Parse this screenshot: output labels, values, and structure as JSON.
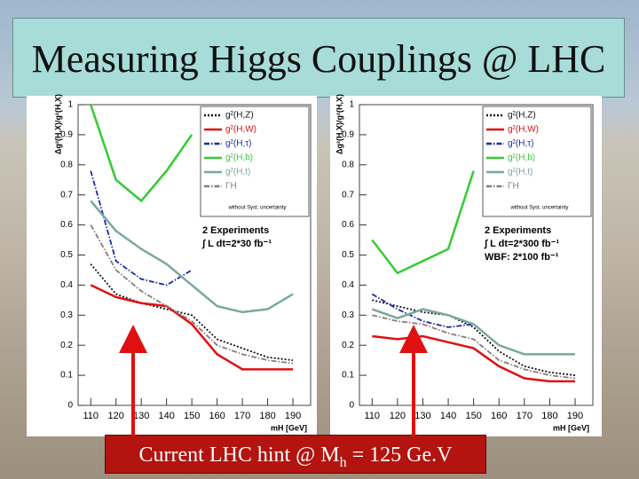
{
  "title": "Measuring Higgs Couplings @ LHC",
  "annotation": {
    "before": "Current LHC hint @ M",
    "sub": "h",
    "after": " = 125 Ge.V"
  },
  "chart_data": [
    {
      "type": "line",
      "ylabel": "Δg²(H,X)/g²(H,X)",
      "xlabel": "mH [GeV]",
      "x": [
        110,
        120,
        130,
        140,
        150,
        160,
        170,
        180,
        190
      ],
      "xlim": [
        105,
        197
      ],
      "ylim": [
        0,
        1
      ],
      "xticks": [
        110,
        120,
        130,
        140,
        150,
        160,
        170,
        180,
        190
      ],
      "yticks": [
        0,
        0.1,
        0.2,
        0.3,
        0.4,
        0.5,
        0.6,
        0.7,
        0.8,
        0.9,
        1
      ],
      "legend_note": "without Syst. uncertainty",
      "notes": [
        "2 Experiments",
        "∫ L dt=2*30 fb⁻¹"
      ],
      "series": [
        {
          "name": "g²(H,Z)",
          "color": "#111111",
          "style": "dotted",
          "values": [
            0.47,
            0.37,
            0.34,
            0.32,
            0.3,
            0.22,
            0.19,
            0.16,
            0.15
          ]
        },
        {
          "name": "g²(H,W)",
          "color": "#e01010",
          "style": "solid",
          "values": [
            0.4,
            0.36,
            0.34,
            0.33,
            0.27,
            0.17,
            0.12,
            0.12,
            0.12
          ]
        },
        {
          "name": "g²(H,τ)",
          "color": "#1a2aa8",
          "style": "dashdot",
          "values": [
            0.78,
            0.48,
            0.42,
            0.4,
            0.45,
            null,
            null,
            null,
            null
          ]
        },
        {
          "name": "g²(H,b)",
          "color": "#33cc33",
          "style": "solid",
          "values": [
            1.0,
            0.75,
            0.68,
            0.78,
            0.9,
            null,
            null,
            null,
            null
          ]
        },
        {
          "name": "g²(H,t)",
          "color": "#79a89e",
          "style": "solid",
          "values": [
            0.68,
            0.58,
            0.52,
            0.47,
            0.4,
            0.33,
            0.31,
            0.32,
            0.37
          ]
        },
        {
          "name": "ΓH",
          "color": "#8a7a7a",
          "style": "dashdot",
          "values": [
            0.6,
            0.45,
            0.38,
            0.33,
            0.28,
            0.2,
            0.17,
            0.15,
            0.14
          ]
        }
      ]
    },
    {
      "type": "line",
      "ylabel": "Δg²(H,X)/g²(H,X)",
      "xlabel": "mH [GeV]",
      "x": [
        110,
        120,
        130,
        140,
        150,
        160,
        170,
        180,
        190
      ],
      "xlim": [
        105,
        197
      ],
      "ylim": [
        0,
        1
      ],
      "xticks": [
        110,
        120,
        130,
        140,
        150,
        160,
        170,
        180,
        190
      ],
      "yticks": [
        0,
        0.1,
        0.2,
        0.3,
        0.4,
        0.5,
        0.6,
        0.7,
        0.8,
        0.9,
        1
      ],
      "legend_note": "without Syst. uncertainty",
      "notes": [
        "2 Experiments",
        "∫ L dt=2*300 fb⁻¹",
        "WBF: 2*100 fb⁻¹"
      ],
      "series": [
        {
          "name": "g²(H,Z)",
          "color": "#111111",
          "style": "dotted",
          "values": [
            0.35,
            0.33,
            0.31,
            0.3,
            0.26,
            0.18,
            0.13,
            0.11,
            0.1
          ]
        },
        {
          "name": "g²(H,W)",
          "color": "#e01010",
          "style": "solid",
          "values": [
            0.23,
            0.22,
            0.23,
            0.21,
            0.19,
            0.13,
            0.09,
            0.08,
            0.08
          ]
        },
        {
          "name": "g²(H,τ)",
          "color": "#1a2aa8",
          "style": "dashdot",
          "values": [
            0.37,
            0.32,
            0.28,
            0.26,
            0.27,
            null,
            null,
            null,
            null
          ]
        },
        {
          "name": "g²(H,b)",
          "color": "#33cc33",
          "style": "solid",
          "values": [
            0.55,
            0.44,
            0.48,
            0.52,
            0.78,
            null,
            null,
            null,
            null
          ]
        },
        {
          "name": "g²(H,t)",
          "color": "#79a89e",
          "style": "solid",
          "values": [
            0.32,
            0.29,
            0.32,
            0.3,
            0.27,
            0.2,
            0.17,
            0.17,
            0.17
          ]
        },
        {
          "name": "ΓH",
          "color": "#8a7a7a",
          "style": "dashdot",
          "values": [
            0.3,
            0.28,
            0.27,
            0.24,
            0.22,
            0.15,
            0.12,
            0.1,
            0.09
          ]
        }
      ]
    }
  ]
}
